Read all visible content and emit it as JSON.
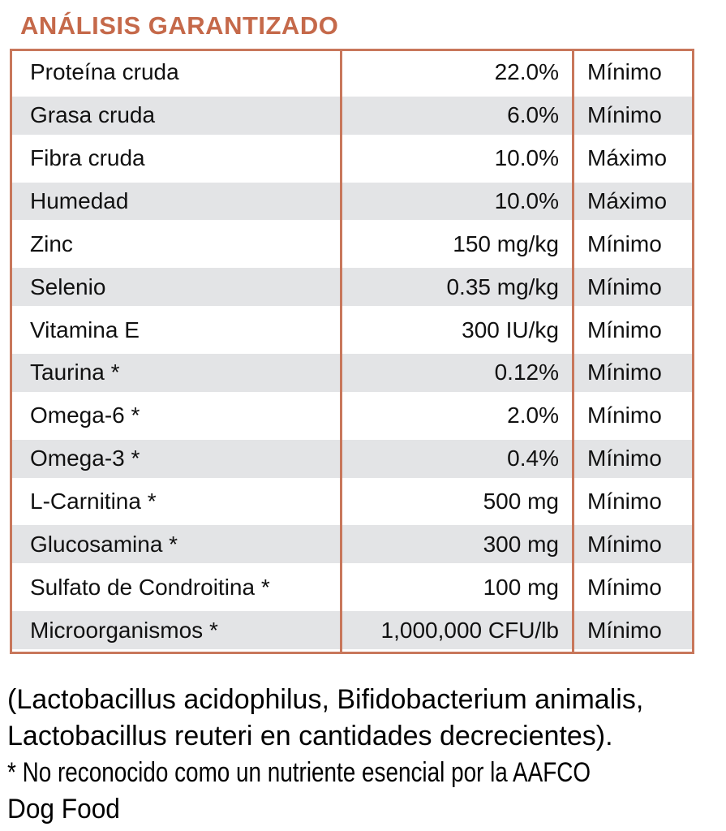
{
  "title": "ANÁLISIS GARANTIZADO",
  "colors": {
    "accent_title": "#C5694A",
    "table_border": "#C8775B",
    "row_alt_background": "#E3E4E6",
    "text": "#111111"
  },
  "table": {
    "rows": [
      {
        "nutrient": "Proteína cruda",
        "value": "22.0%",
        "basis": "Mínimo"
      },
      {
        "nutrient": "Grasa cruda",
        "value": "6.0%",
        "basis": "Mínimo"
      },
      {
        "nutrient": "Fibra cruda",
        "value": "10.0%",
        "basis": "Máximo"
      },
      {
        "nutrient": "Humedad",
        "value": "10.0%",
        "basis": "Máximo"
      },
      {
        "nutrient": "Zinc",
        "value": "150 mg/kg",
        "basis": "Mínimo"
      },
      {
        "nutrient": "Selenio",
        "value": "0.35 mg/kg",
        "basis": "Mínimo"
      },
      {
        "nutrient": "Vitamina E",
        "value": "300 IU/kg",
        "basis": "Mínimo"
      },
      {
        "nutrient": "Taurina *",
        "value": "0.12%",
        "basis": "Mínimo"
      },
      {
        "nutrient": "Omega-6 *",
        "value": "2.0%",
        "basis": "Mínimo"
      },
      {
        "nutrient": "Omega-3 *",
        "value": "0.4%",
        "basis": "Mínimo"
      },
      {
        "nutrient": "L-Carnitina *",
        "value": "500 mg",
        "basis": "Mínimo"
      },
      {
        "nutrient": "Glucosamina *",
        "value": "300 mg",
        "basis": "Mínimo"
      },
      {
        "nutrient": "Sulfato de Condroitina *",
        "value": "100 mg",
        "basis": "Mínimo"
      },
      {
        "nutrient": "Microorganismos *",
        "value": "1,000,000 CFU/lb",
        "basis": "Mínimo"
      }
    ]
  },
  "footnotes": {
    "line1": "(Lactobacillus acidophilus, Bifidobacterium animalis,",
    "line2": "Lactobacillus reuteri en cantidades decrecientes).",
    "line3": "* No reconocido como un nutriente esencial por la AAFCO",
    "line4": "Dog Food"
  }
}
